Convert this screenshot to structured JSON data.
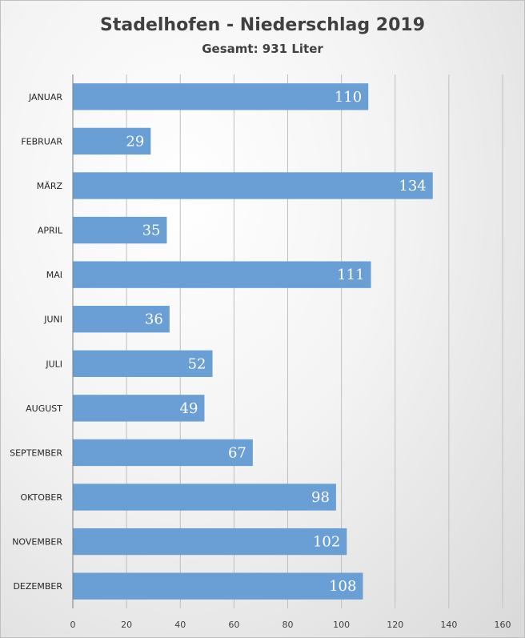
{
  "chart_data": {
    "type": "bar",
    "orientation": "horizontal",
    "title": "Stadelhofen - Niederschlag 2019",
    "subtitle": "Gesamt: 931 Liter",
    "categories": [
      "JANUAR",
      "FEBRUAR",
      "MÄRZ",
      "APRIL",
      "MAI",
      "JUNI",
      "JULI",
      "AUGUST",
      "SEPTEMBER",
      "OKTOBER",
      "NOVEMBER",
      "DEZEMBER"
    ],
    "values": [
      110,
      29,
      134,
      35,
      111,
      36,
      52,
      49,
      67,
      98,
      102,
      108
    ],
    "xlim": [
      0,
      160
    ],
    "xticks": [
      0,
      20,
      40,
      60,
      80,
      100,
      120,
      140,
      160
    ],
    "grid": true,
    "legend": "none",
    "bar_color": "#6a9fd6"
  }
}
